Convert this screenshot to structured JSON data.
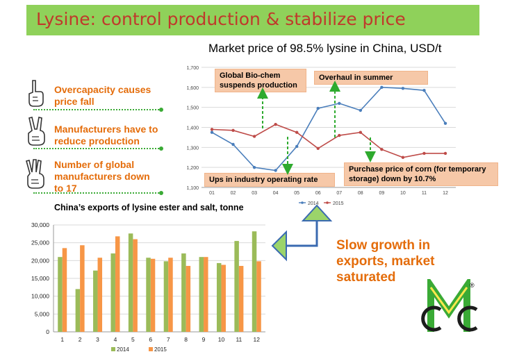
{
  "banner": {
    "title": "Lysine: control production & stabilize price"
  },
  "points": [
    {
      "text": "Overcapacity causes price fall"
    },
    {
      "text": "Manufacturers have to reduce production"
    },
    {
      "text": "Number of global manufacturers down to 17"
    }
  ],
  "callouts": {
    "bio_chem": "Global Bio-chem suspends production",
    "overhaul": "Overhaul in summer",
    "ups": "Ups in industry operating rate",
    "corn": "Purchase price of corn (for temporary storage) down by 10.7%"
  },
  "conclusion": "Slow growth in exports, market saturated",
  "colors": {
    "banner_bg": "#8fd15a",
    "banner_text": "#c0392b",
    "accent_orange": "#e46c0a",
    "green": "#3aaa35",
    "callout_bg": "#f6c8a8"
  },
  "chart_data": [
    {
      "type": "line",
      "title": "Market price of 98.5% lysine in China, USD/t",
      "x": [
        "01",
        "02",
        "03",
        "04",
        "05",
        "06",
        "07",
        "08",
        "09",
        "10",
        "11",
        "12"
      ],
      "yticks": [
        "1,100",
        "1,200",
        "1,300",
        "1,400",
        "1,500",
        "1,600",
        "1,700"
      ],
      "ylim": [
        1100,
        1700
      ],
      "grid": true,
      "legend_position": "bottom",
      "series": [
        {
          "name": "2014",
          "color": "#4a7ebb",
          "values": [
            1375,
            1315,
            1200,
            1185,
            1305,
            1495,
            1520,
            1485,
            1600,
            1595,
            1585,
            1420
          ]
        },
        {
          "name": "2015",
          "color": "#be4b48",
          "values": [
            1390,
            1385,
            1355,
            1415,
            1375,
            1295,
            1360,
            1375,
            1290,
            1250,
            1270,
            1270
          ]
        }
      ]
    },
    {
      "type": "bar",
      "title": "China’s exports of lysine ester and salt, tonne",
      "categories": [
        "1",
        "2",
        "3",
        "4",
        "5",
        "6",
        "7",
        "8",
        "9",
        "10",
        "11",
        "12"
      ],
      "yticks": [
        "0",
        "5,000",
        "10,000",
        "15,000",
        "20,000",
        "25,000",
        "30,000"
      ],
      "ylim": [
        0,
        30000
      ],
      "grid": true,
      "legend_position": "bottom",
      "series": [
        {
          "name": "2014",
          "color": "#9bbb59",
          "values": [
            21000,
            12000,
            17200,
            22000,
            27600,
            20800,
            19800,
            22000,
            21000,
            19300,
            25500,
            28200
          ]
        },
        {
          "name": "2015",
          "color": "#f79646",
          "values": [
            23500,
            24300,
            20800,
            26800,
            26000,
            20500,
            20800,
            18500,
            21000,
            18800,
            18500,
            19800
          ]
        }
      ]
    }
  ]
}
